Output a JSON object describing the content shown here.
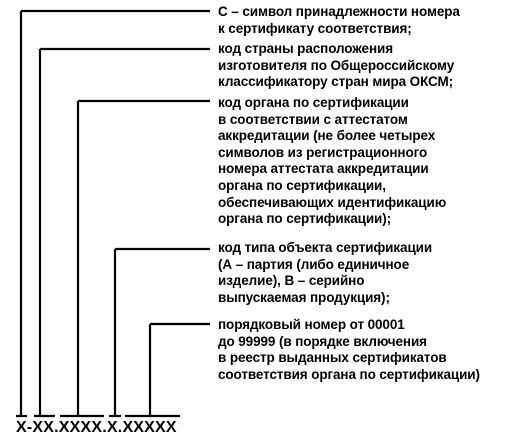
{
  "entries": [
    "С – символ принадлежности номера\nк сертификату соответствия;",
    "код страны расположения\nизготовителя по Общероссийскому\nклассификатору стран мира ОКСМ;",
    "код органа по сертификации\nв соответствии с аттестатом\nаккредитации (не более четырех\nсимволов из регистрационного\nномера аттестата аккредитации\nоргана по сертификации,\nобеспечивающих идентификацию\nоргана по сертификации);",
    "код типа объекта сертификации\n(А – партия (либо единичное\nизделие), В – серийно\nвыпускаемая продукция);",
    "порядковый номер от 00001\nдо 99999 (в порядке включения\nв реестр выданных сертификатов\nсоответствия органа по сертификации)"
  ],
  "code": "Х-ХХ.ХХХХ.Х.ХХХХХ"
}
